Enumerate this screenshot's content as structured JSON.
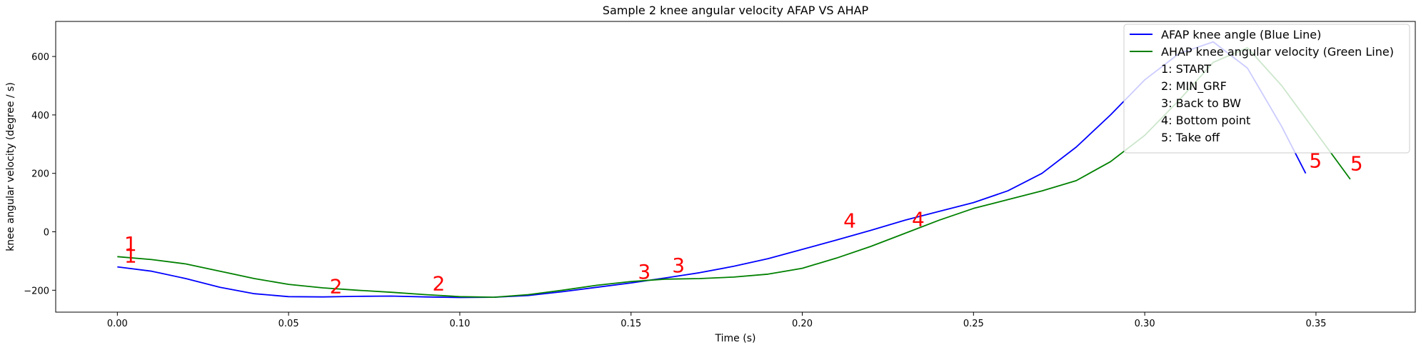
{
  "chart_data": {
    "type": "line",
    "title": "Sample 2 knee angular velocity AFAP VS AHAP",
    "xlabel": "Time (s)",
    "ylabel": "knee angular velocity (degree / s)",
    "xlim": [
      -0.018,
      0.379
    ],
    "ylim": [
      -275,
      720
    ],
    "xticks": [
      0.0,
      0.05,
      0.1,
      0.15,
      0.2,
      0.25,
      0.3,
      0.35
    ],
    "xtick_labels": [
      "0.00",
      "0.05",
      "0.10",
      "0.15",
      "0.20",
      "0.25",
      "0.30",
      "0.35"
    ],
    "yticks": [
      -200,
      0,
      200,
      400,
      600
    ],
    "ytick_labels": [
      "−200",
      "0",
      "200",
      "400",
      "600"
    ],
    "grid": false,
    "legend_position": "top-right",
    "series": [
      {
        "name": "AFAP knee angle (Blue Line)",
        "color": "#0000ff",
        "x": [
          0.0,
          0.01,
          0.02,
          0.03,
          0.04,
          0.05,
          0.06,
          0.07,
          0.08,
          0.09,
          0.1,
          0.11,
          0.12,
          0.13,
          0.14,
          0.15,
          0.16,
          0.17,
          0.18,
          0.19,
          0.2,
          0.21,
          0.22,
          0.23,
          0.24,
          0.25,
          0.26,
          0.27,
          0.28,
          0.29,
          0.3,
          0.31,
          0.32,
          0.33,
          0.34,
          0.347
        ],
        "y": [
          -120,
          -135,
          -160,
          -190,
          -212,
          -222,
          -223,
          -221,
          -220,
          -223,
          -225,
          -224,
          -218,
          -205,
          -190,
          -175,
          -158,
          -140,
          -118,
          -92,
          -60,
          -28,
          5,
          40,
          70,
          100,
          140,
          200,
          290,
          400,
          520,
          610,
          650,
          560,
          360,
          200
        ]
      },
      {
        "name": "AHAP knee angular velocity (Green Line)",
        "color": "#008000",
        "x": [
          0.0,
          0.01,
          0.02,
          0.03,
          0.04,
          0.05,
          0.06,
          0.07,
          0.08,
          0.09,
          0.1,
          0.11,
          0.12,
          0.13,
          0.14,
          0.15,
          0.16,
          0.17,
          0.18,
          0.19,
          0.2,
          0.21,
          0.22,
          0.23,
          0.24,
          0.25,
          0.26,
          0.27,
          0.28,
          0.29,
          0.3,
          0.31,
          0.32,
          0.33,
          0.34,
          0.35,
          0.36
        ],
        "y": [
          -85,
          -95,
          -110,
          -135,
          -160,
          -180,
          -192,
          -200,
          -207,
          -215,
          -222,
          -224,
          -215,
          -200,
          -183,
          -170,
          -162,
          -160,
          -155,
          -145,
          -125,
          -90,
          -50,
          -5,
          40,
          80,
          110,
          140,
          175,
          240,
          330,
          450,
          580,
          630,
          500,
          340,
          180
        ]
      }
    ],
    "annotations": [
      {
        "text": "1",
        "x": 0.002,
        "y": -65,
        "color": "#ff0000"
      },
      {
        "text": "1",
        "x": 0.002,
        "y": -105,
        "color": "#ff0000"
      },
      {
        "text": "2",
        "x": 0.062,
        "y": -210,
        "color": "#ff0000"
      },
      {
        "text": "2",
        "x": 0.092,
        "y": -200,
        "color": "#ff0000"
      },
      {
        "text": "3",
        "x": 0.152,
        "y": -160,
        "color": "#ff0000"
      },
      {
        "text": "3",
        "x": 0.162,
        "y": -138,
        "color": "#ff0000"
      },
      {
        "text": "4",
        "x": 0.212,
        "y": 15,
        "color": "#ff0000"
      },
      {
        "text": "4",
        "x": 0.232,
        "y": 20,
        "color": "#ff0000"
      },
      {
        "text": "5",
        "x": 0.348,
        "y": 220,
        "color": "#ff0000"
      },
      {
        "text": "5",
        "x": 0.36,
        "y": 210,
        "color": "#ff0000"
      }
    ],
    "legend_extra": [
      "1: START",
      "2: MIN_GRF",
      "3: Back to BW",
      "4: Bottom point",
      "5: Take off"
    ]
  }
}
